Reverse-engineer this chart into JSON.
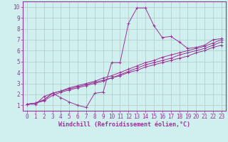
{
  "xlabel": "Windchill (Refroidissement éolien,°C)",
  "bg_color": "#cff0ee",
  "line_color": "#993399",
  "grid_color": "#b0c8c8",
  "xlim": [
    -0.5,
    23.5
  ],
  "ylim": [
    0.5,
    10.5
  ],
  "xticks": [
    0,
    1,
    2,
    3,
    4,
    5,
    6,
    7,
    8,
    9,
    10,
    11,
    12,
    13,
    14,
    15,
    16,
    17,
    18,
    19,
    20,
    21,
    22,
    23
  ],
  "yticks": [
    1,
    2,
    3,
    4,
    5,
    6,
    7,
    8,
    9,
    10
  ],
  "series": [
    [
      1.1,
      1.1,
      1.8,
      2.1,
      1.7,
      1.3,
      1.0,
      0.8,
      2.1,
      2.2,
      4.9,
      4.9,
      8.5,
      9.9,
      9.9,
      8.3,
      7.2,
      7.3,
      6.8,
      6.2,
      6.3,
      6.5,
      7.0,
      7.1
    ],
    [
      1.1,
      1.2,
      1.5,
      2.1,
      2.3,
      2.6,
      2.8,
      3.0,
      3.2,
      3.5,
      3.7,
      4.0,
      4.3,
      4.6,
      4.9,
      5.1,
      5.4,
      5.6,
      5.8,
      6.0,
      6.2,
      6.4,
      6.7,
      7.0
    ],
    [
      1.1,
      1.2,
      1.5,
      2.1,
      2.3,
      2.5,
      2.7,
      2.9,
      3.1,
      3.3,
      3.5,
      3.8,
      4.1,
      4.4,
      4.7,
      4.9,
      5.1,
      5.3,
      5.6,
      5.8,
      6.0,
      6.2,
      6.5,
      6.8
    ],
    [
      1.1,
      1.2,
      1.4,
      1.9,
      2.2,
      2.4,
      2.6,
      2.8,
      3.0,
      3.2,
      3.5,
      3.7,
      4.0,
      4.2,
      4.5,
      4.7,
      4.9,
      5.1,
      5.3,
      5.5,
      5.8,
      6.0,
      6.3,
      6.5
    ]
  ],
  "tick_fontsize": 5.5,
  "xlabel_fontsize": 6.0
}
